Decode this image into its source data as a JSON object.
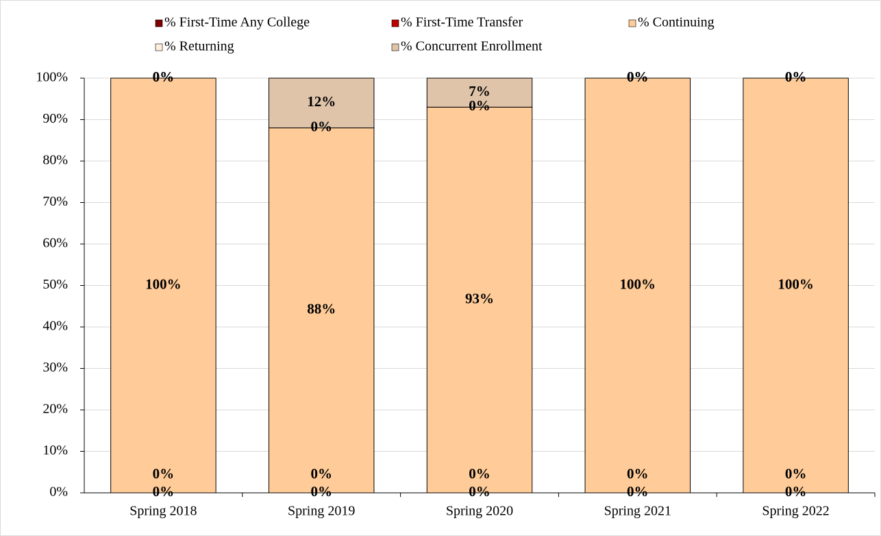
{
  "chart_data": {
    "type": "stacked_bar",
    "categories": [
      "Spring 2018",
      "Spring 2019",
      "Spring 2020",
      "Spring 2021",
      "Spring 2022"
    ],
    "series": [
      {
        "name": "% First-Time Any College",
        "color": "#7f0000",
        "values": [
          0,
          0,
          0,
          0,
          0
        ],
        "value_labels": [
          "0%",
          "0%",
          "0%",
          "0%",
          "0%"
        ]
      },
      {
        "name": "% First-Time Transfer",
        "color": "#c00000",
        "values": [
          0,
          0,
          0,
          0,
          0
        ],
        "value_labels": [
          "0%",
          "0%",
          "0%",
          "0%",
          "0%"
        ]
      },
      {
        "name": "% Continuing",
        "color": "#ffcc99",
        "values": [
          100,
          88,
          93,
          100,
          100
        ],
        "value_labels": [
          "100%",
          "88%",
          "93%",
          "100%",
          "100%"
        ]
      },
      {
        "name": "% Returning",
        "color": "#ffeedd",
        "values": [
          0,
          0,
          0,
          0,
          0
        ],
        "value_labels": [
          "0%",
          "0%",
          "0%",
          "0%",
          "0%"
        ]
      },
      {
        "name": "% Concurrent Enrollment",
        "color": "#dfc4a9",
        "values": [
          0,
          12,
          7,
          0,
          0
        ],
        "value_labels": [
          "0%",
          "12%",
          "7%",
          "0%",
          "0%"
        ]
      }
    ],
    "ylim": [
      0,
      100
    ],
    "yticks": [
      {
        "value": 0,
        "label": "0%"
      },
      {
        "value": 10,
        "label": "10%"
      },
      {
        "value": 20,
        "label": "20%"
      },
      {
        "value": 30,
        "label": "30%"
      },
      {
        "value": 40,
        "label": "40%"
      },
      {
        "value": 50,
        "label": "50%"
      },
      {
        "value": 60,
        "label": "60%"
      },
      {
        "value": 70,
        "label": "70%"
      },
      {
        "value": 80,
        "label": "80%"
      },
      {
        "value": 90,
        "label": "90%"
      },
      {
        "value": 100,
        "label": "100%"
      }
    ],
    "grid": true,
    "legend": "top"
  }
}
